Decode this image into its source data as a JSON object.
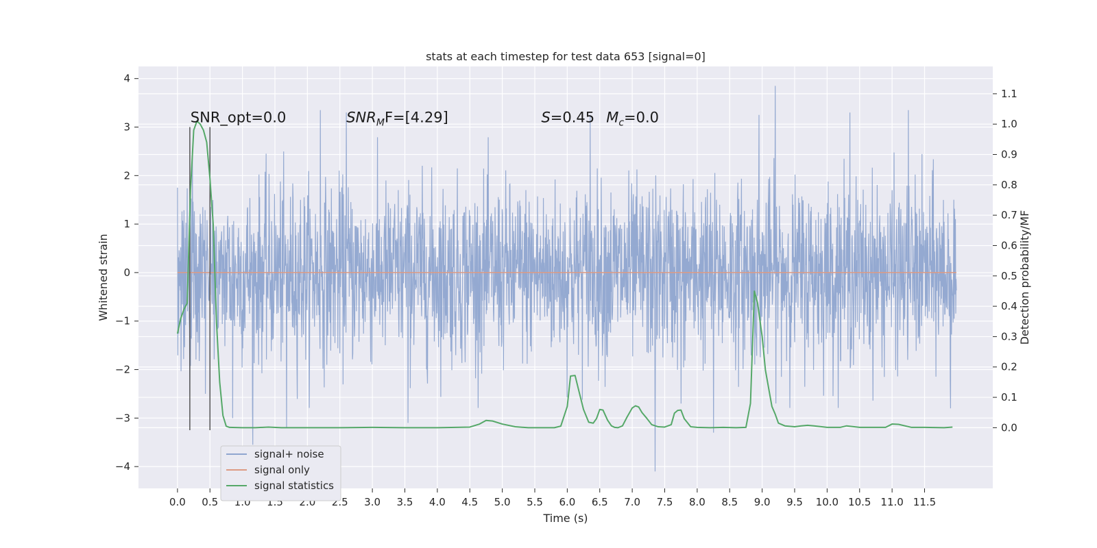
{
  "chart_data": {
    "type": "line",
    "title": "stats at each timestep for test data 653 [signal=0]",
    "xlabel": "Time (s)",
    "ylabel_left": "Whitened strain",
    "ylabel_right": "Detection probability/MF",
    "xlim": [
      -0.6,
      12.55
    ],
    "ylim_left": [
      -4.45,
      4.25
    ],
    "ylim_right": [
      -0.2,
      1.19
    ],
    "grid": true,
    "legend_position": "lower-left",
    "x_ticks": [
      0.0,
      0.5,
      1.0,
      1.5,
      2.0,
      2.5,
      3.0,
      3.5,
      4.0,
      4.5,
      5.0,
      5.5,
      6.0,
      6.5,
      7.0,
      7.5,
      8.0,
      8.5,
      9.0,
      9.5,
      10.0,
      10.5,
      11.0,
      11.5
    ],
    "x_tick_labels": [
      "0.0",
      "0.5",
      "1.0",
      "1.5",
      "2.0",
      "2.5",
      "3.0",
      "3.5",
      "4.0",
      "4.5",
      "5.0",
      "5.5",
      "6.0",
      "6.5",
      "7.0",
      "7.5",
      "8.0",
      "8.5",
      "9.0",
      "9.5",
      "10.0",
      "10.5",
      "11.0",
      "11.5"
    ],
    "y_left_ticks": [
      -4,
      -3,
      -2,
      -1,
      0,
      1,
      2,
      3,
      4
    ],
    "y_left_tick_labels": [
      "−4",
      "−3",
      "−2",
      "−1",
      "0",
      "1",
      "2",
      "3",
      "4"
    ],
    "y_right_ticks": [
      0.0,
      0.1,
      0.2,
      0.3,
      0.4,
      0.5,
      0.6,
      0.7,
      0.8,
      0.9,
      1.0,
      1.1
    ],
    "y_right_tick_labels": [
      "0.0",
      "0.1",
      "0.2",
      "0.3",
      "0.4",
      "0.5",
      "0.6",
      "0.7",
      "0.8",
      "0.9",
      "1.0",
      "1.1"
    ],
    "series": [
      {
        "name": "signal+ noise",
        "axis": "left",
        "color": "#8fa5cf",
        "x_range": [
          0.0,
          11.99
        ],
        "typical_band": [
          -1.8,
          1.8
        ],
        "extremes": [
          {
            "x": 0.0,
            "y": 1.75
          },
          {
            "x": 0.19,
            "y": -2.5
          },
          {
            "x": 0.43,
            "y": -2.5
          },
          {
            "x": 0.85,
            "y": -3.0
          },
          {
            "x": 1.16,
            "y": -3.55
          },
          {
            "x": 1.68,
            "y": -3.2
          },
          {
            "x": 2.2,
            "y": 3.35
          },
          {
            "x": 2.6,
            "y": 3.3
          },
          {
            "x": 3.55,
            "y": -3.1
          },
          {
            "x": 6.35,
            "y": 3.25
          },
          {
            "x": 7.35,
            "y": -4.1
          },
          {
            "x": 7.75,
            "y": -2.7
          },
          {
            "x": 8.25,
            "y": -3.3
          },
          {
            "x": 8.95,
            "y": 3.25
          },
          {
            "x": 9.2,
            "y": 3.85
          },
          {
            "x": 10.35,
            "y": 3.3
          },
          {
            "x": 11.25,
            "y": 3.35
          },
          {
            "x": 11.9,
            "y": -2.8
          }
        ]
      },
      {
        "name": "signal only",
        "axis": "left",
        "color": "#dd9a82",
        "x": [
          0.0,
          11.99
        ],
        "y": [
          0.0,
          0.0
        ]
      },
      {
        "name": "signal statistics",
        "axis": "right",
        "color": "#55a868",
        "x": [
          0.0,
          0.05,
          0.1,
          0.15,
          0.2,
          0.25,
          0.3,
          0.35,
          0.4,
          0.45,
          0.5,
          0.55,
          0.6,
          0.65,
          0.7,
          0.75,
          0.8,
          1.0,
          1.2,
          1.4,
          1.6,
          2.0,
          2.5,
          3.0,
          3.5,
          4.0,
          4.5,
          4.65,
          4.75,
          4.85,
          5.0,
          5.2,
          5.4,
          5.6,
          5.8,
          5.9,
          6.0,
          6.05,
          6.12,
          6.18,
          6.25,
          6.33,
          6.4,
          6.45,
          6.5,
          6.55,
          6.62,
          6.68,
          6.73,
          6.78,
          6.85,
          6.92,
          7.0,
          7.05,
          7.1,
          7.15,
          7.22,
          7.3,
          7.4,
          7.5,
          7.6,
          7.65,
          7.7,
          7.75,
          7.8,
          7.9,
          8.0,
          8.2,
          8.4,
          8.6,
          8.75,
          8.82,
          8.88,
          8.93,
          9.0,
          9.05,
          9.1,
          9.15,
          9.2,
          9.25,
          9.35,
          9.5,
          9.6,
          9.7,
          9.8,
          10.0,
          10.2,
          10.3,
          10.5,
          10.75,
          10.9,
          11.0,
          11.1,
          11.3,
          11.5,
          11.8,
          11.93
        ],
        "y": [
          0.31,
          0.36,
          0.39,
          0.41,
          0.78,
          0.98,
          1.01,
          1.0,
          0.98,
          0.94,
          0.82,
          0.67,
          0.35,
          0.15,
          0.04,
          0.005,
          0.001,
          0.0,
          0.0,
          0.002,
          0.0,
          0.0,
          0.0,
          0.001,
          0.0,
          0.0,
          0.002,
          0.012,
          0.024,
          0.022,
          0.012,
          0.003,
          0.0,
          0.0,
          0.0,
          0.005,
          0.07,
          0.17,
          0.172,
          0.12,
          0.06,
          0.018,
          0.015,
          0.03,
          0.06,
          0.058,
          0.025,
          0.006,
          0.001,
          0.0,
          0.006,
          0.035,
          0.065,
          0.072,
          0.068,
          0.05,
          0.032,
          0.01,
          0.003,
          0.002,
          0.01,
          0.048,
          0.057,
          0.058,
          0.03,
          0.003,
          0.001,
          0.0,
          0.001,
          0.0,
          0.001,
          0.08,
          0.45,
          0.41,
          0.3,
          0.19,
          0.13,
          0.07,
          0.045,
          0.015,
          0.006,
          0.003,
          0.006,
          0.008,
          0.006,
          0.001,
          0.001,
          0.006,
          0.001,
          0.001,
          0.001,
          0.012,
          0.011,
          0.001,
          0.001,
          0.0,
          0.002
        ]
      }
    ],
    "vertical_markers": {
      "color": "#555555",
      "x": [
        0.19,
        0.5
      ],
      "y_from": -3.25,
      "y_to": 3.0
    },
    "annotations": [
      {
        "text": "SNR_opt=0.0",
        "x": 0.2,
        "y": 3.1
      },
      {
        "text_main": "SNR",
        "text_sub": "M",
        "text_rest": "F=[4.29]",
        "x": 2.6,
        "y": 3.1
      },
      {
        "text": "S=0.45",
        "x": 5.6,
        "y": 3.1
      },
      {
        "text_main": "M",
        "text_sub": "c",
        "text_rest": "=0.0",
        "x": 6.6,
        "y": 3.1
      }
    ]
  }
}
